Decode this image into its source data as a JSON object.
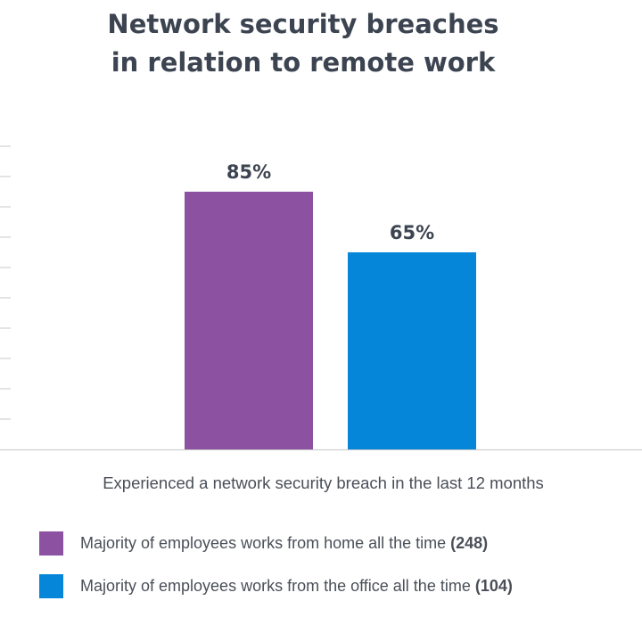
{
  "chart_data": {
    "type": "bar",
    "title_lines": [
      "Network security breaches",
      "in relation to remote work"
    ],
    "xlabel": "Experienced a network security breach in the last 12 months",
    "ylabel": "",
    "ylim": [
      0,
      100
    ],
    "categories": [
      "Majority of employees works from home all the time",
      "Majority of employees works from the office all the time"
    ],
    "values": [
      85,
      65
    ],
    "data_labels": [
      "85%",
      "65%"
    ],
    "grid": false,
    "legend_position": "bottom",
    "legend": [
      {
        "label": "Majority of employees works from home all the time",
        "count": "(248)",
        "color": "#8c52a1"
      },
      {
        "label": "Majority of employees works from the office all the time",
        "count": "(104)",
        "color": "#0686d8"
      }
    ]
  },
  "colors": {
    "title": "#3d4451",
    "axis": "#c8c8c8",
    "text": "#4a4f58"
  }
}
